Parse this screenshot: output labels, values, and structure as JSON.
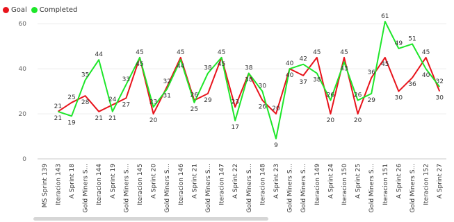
{
  "legend": {
    "goal_label": "Goal",
    "completed_label": "Completed",
    "goal_color": "#e8141c",
    "completed_color": "#1ee62a"
  },
  "chart_data": {
    "type": "line",
    "categories": [
      "MS Sprint 139",
      "Iteracion 143",
      "A Sprint 18",
      "Gold Miners S...",
      "Iteracion 144",
      "A Sprint 19",
      "Gold Miners S...",
      "Iteracion 145",
      "A Sprint 20",
      "Gold Miners S...",
      "Iteracion 146",
      "A Sprint 21",
      "Gold Miners S...",
      "Iteracion 147",
      "A Sprint 22",
      "Gold Miners S...",
      "Iteracion 148",
      "A Sprint 23",
      "Gold Miners S...",
      "Gold Miners S...",
      "Iteracion 149",
      "A Sprint 24",
      "Iteracion 150",
      "A Sprint 25",
      "Gold Miners S...",
      "Iteracion 151",
      "A Sprint 26",
      "Gold Miners S...",
      "Iteracion 152",
      "A Sprint 27"
    ],
    "series": [
      {
        "name": "Goal",
        "color": "#e8141c",
        "values": [
          null,
          21,
          25,
          28,
          21,
          24,
          27,
          45,
          20,
          32,
          45,
          26,
          29,
          45,
          23,
          38,
          26,
          20,
          40,
          37,
          45,
          20,
          45,
          20,
          36,
          45,
          30,
          36,
          45,
          30
        ]
      },
      {
        "name": "Completed",
        "color": "#1ee62a",
        "values": [
          null,
          21,
          19,
          35,
          44,
          21,
          33,
          45,
          23,
          31,
          44,
          25,
          38,
          45,
          17,
          38,
          30,
          9,
          40,
          42,
          38,
          26,
          43,
          26,
          29,
          61,
          49,
          51,
          40,
          32
        ]
      }
    ],
    "yticks": [
      0,
      20,
      40,
      60
    ],
    "ylim": [
      0,
      65
    ],
    "grid": true,
    "legend_position": "top-left"
  }
}
